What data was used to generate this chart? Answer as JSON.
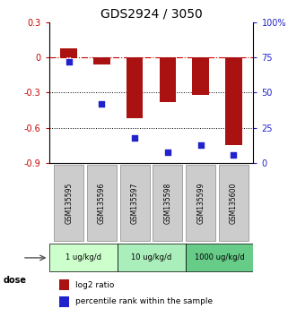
{
  "title": "GDS2924 / 3050",
  "samples": [
    "GSM135595",
    "GSM135596",
    "GSM135597",
    "GSM135598",
    "GSM135599",
    "GSM135600"
  ],
  "log2_ratio": [
    0.08,
    -0.06,
    -0.52,
    -0.38,
    -0.32,
    -0.75
  ],
  "percentile": [
    72,
    42,
    18,
    8,
    13,
    6
  ],
  "bar_color": "#aa1111",
  "dot_color": "#2222cc",
  "ylim_left": [
    -0.9,
    0.3
  ],
  "ylim_right": [
    0,
    100
  ],
  "yticks_left": [
    0.3,
    0.0,
    -0.3,
    -0.6,
    -0.9
  ],
  "yticks_right": [
    100,
    75,
    50,
    25,
    0
  ],
  "ytick_labels_right": [
    "100%",
    "75",
    "50",
    "25",
    "0"
  ],
  "dose_groups": [
    {
      "label": "1 ug/kg/d",
      "samples": [
        0,
        1
      ],
      "color": "#ccffcc"
    },
    {
      "label": "10 ug/kg/d",
      "samples": [
        2,
        3
      ],
      "color": "#aaeebb"
    },
    {
      "label": "1000 ug/kg/d",
      "samples": [
        4,
        5
      ],
      "color": "#66cc88"
    }
  ],
  "dose_label": "dose",
  "legend_bar_label": "log2 ratio",
  "legend_dot_label": "percentile rank within the sample",
  "hline_color": "#cc0000",
  "dotted_lines": [
    -0.3,
    -0.6
  ],
  "background_color": "#ffffff",
  "bar_width": 0.5
}
